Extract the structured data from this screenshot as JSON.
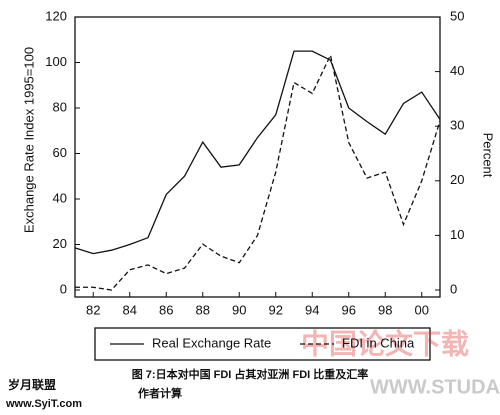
{
  "chart_data": {
    "type": "line",
    "caption": "图 7:日本对中国 FDI 占其对亚洲 FDI 比重及汇率",
    "source": "作者计算",
    "y_label": "Exchange Rate Index 1995=100",
    "y2_label": "Percent",
    "x": [
      81,
      82,
      83,
      84,
      85,
      86,
      87,
      88,
      89,
      90,
      91,
      92,
      93,
      94,
      95,
      96,
      97,
      98,
      99,
      100,
      101
    ],
    "xlim": [
      81,
      101
    ],
    "xticks": [
      82,
      84,
      86,
      88,
      90,
      92,
      94,
      96,
      98,
      {
        "value": 100,
        "label": "00"
      }
    ],
    "ylim": [
      0,
      120
    ],
    "yticks": [
      0,
      20,
      40,
      60,
      80,
      100,
      120
    ],
    "y2lim": [
      0,
      50
    ],
    "y2ticks": [
      0,
      10,
      20,
      30,
      40,
      50
    ],
    "series": [
      {
        "name": "Real Exchange Rate",
        "color": "#111111",
        "line_style": "solid",
        "values": [
          18.5,
          16,
          17.5,
          20,
          23,
          42,
          50,
          65,
          54,
          55,
          67,
          77,
          105,
          105,
          101,
          80,
          74,
          68.5,
          82,
          87,
          75
        ]
      },
      {
        "name": "FDI in China",
        "color": "#111111",
        "line_style": "dashed",
        "axis": "y2",
        "values": [
          0.5,
          0.5,
          0,
          3.7,
          4.6,
          3,
          4,
          8.4,
          6.2,
          5,
          10,
          21.6,
          38,
          36,
          43,
          27,
          20.5,
          21.6,
          12,
          20,
          31
        ]
      }
    ],
    "watermarks": [
      "岁月联盟",
      "www.SyiT.com",
      "中国论文下载",
      "WWW.STUDA"
    ]
  }
}
